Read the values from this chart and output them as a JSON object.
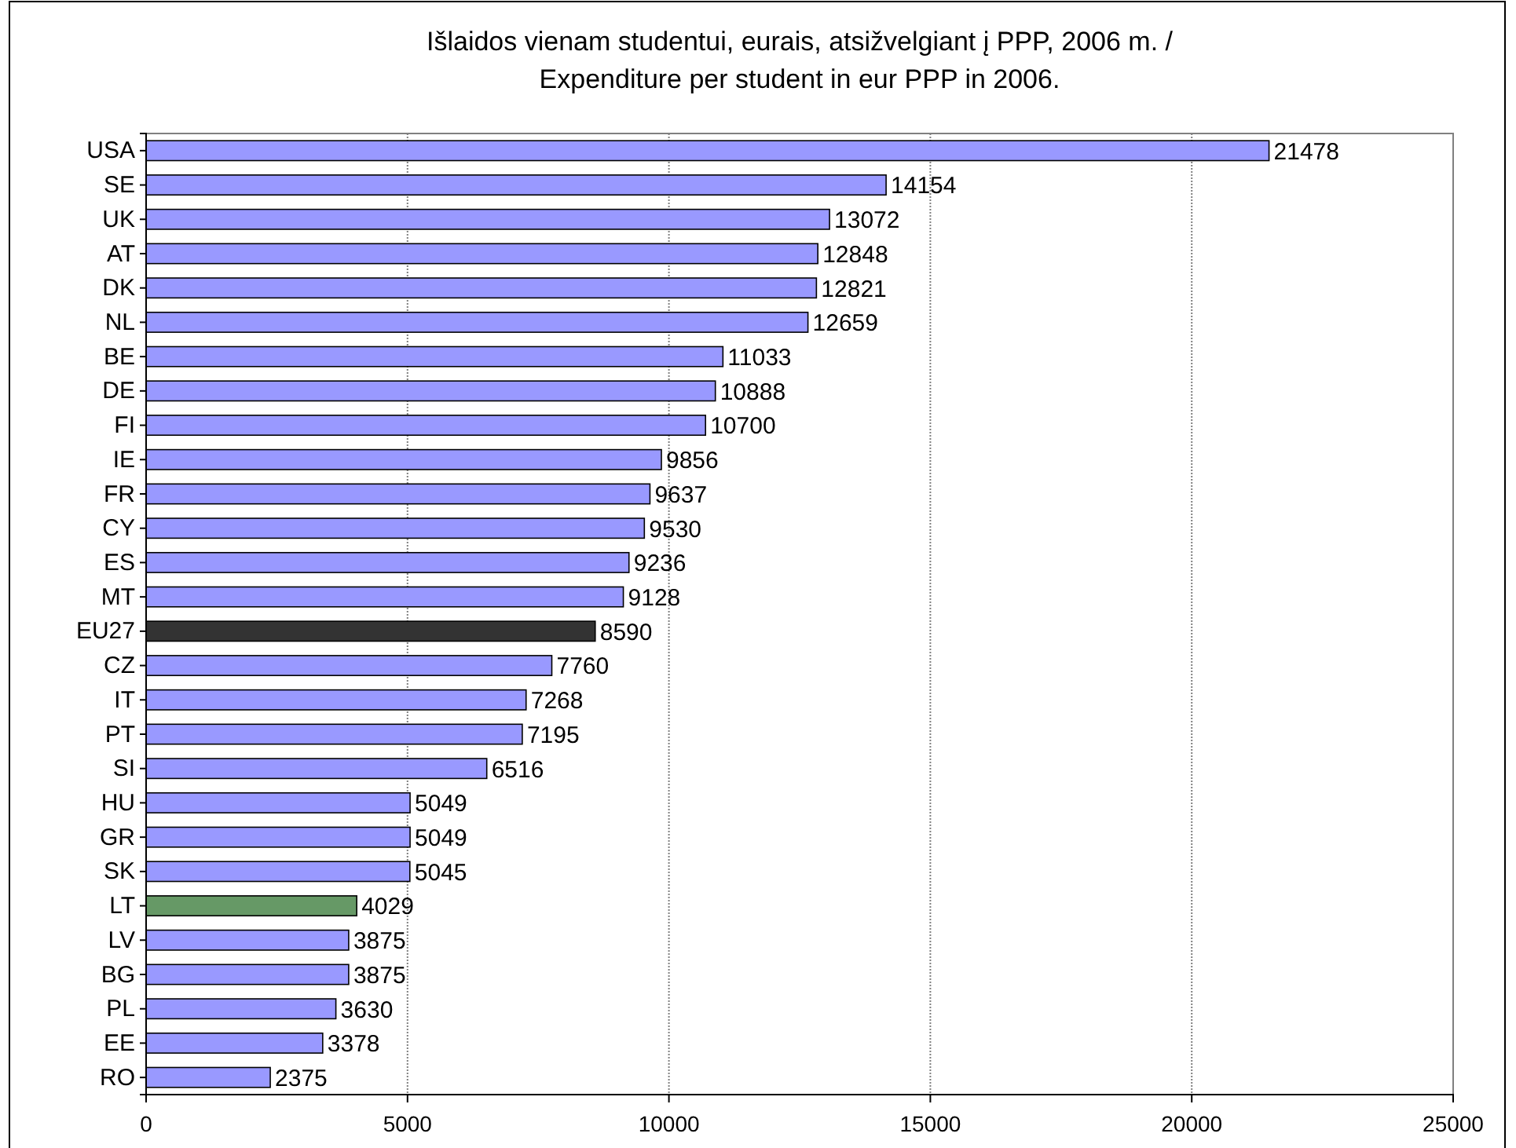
{
  "chart_data": {
    "type": "bar",
    "orientation": "horizontal",
    "title": "Išlaidos vienam studentui, eurais, atsižvelgiant į PPP, 2006 m. / Expenditure per student in eur PPP in 2006.",
    "categories": [
      "USA",
      "SE",
      "UK",
      "AT",
      "DK",
      "NL",
      "BE",
      "DE",
      "FI",
      "IE",
      "FR",
      "CY",
      "ES",
      "MT",
      "EU27",
      "CZ",
      "IT",
      "PT",
      "SI",
      "HU",
      "GR",
      "SK",
      "LT",
      "LV",
      "BG",
      "PL",
      "EE",
      "RO"
    ],
    "values": [
      21478,
      14154,
      13072,
      12848,
      12821,
      12659,
      11033,
      10888,
      10700,
      9856,
      9637,
      9530,
      9236,
      9128,
      8590,
      7760,
      7268,
      7195,
      6516,
      5049,
      5049,
      5045,
      4029,
      3875,
      3875,
      3630,
      3378,
      2375
    ],
    "colors": [
      "#9999ff",
      "#9999ff",
      "#9999ff",
      "#9999ff",
      "#9999ff",
      "#9999ff",
      "#9999ff",
      "#9999ff",
      "#9999ff",
      "#9999ff",
      "#9999ff",
      "#9999ff",
      "#9999ff",
      "#9999ff",
      "#333333",
      "#9999ff",
      "#9999ff",
      "#9999ff",
      "#9999ff",
      "#9999ff",
      "#9999ff",
      "#9999ff",
      "#669966",
      "#9999ff",
      "#9999ff",
      "#9999ff",
      "#9999ff",
      "#9999ff"
    ],
    "xlim": [
      0,
      25000
    ],
    "xticks": [
      0,
      5000,
      10000,
      15000,
      20000,
      25000
    ],
    "grid": "x",
    "data_labels": true
  }
}
